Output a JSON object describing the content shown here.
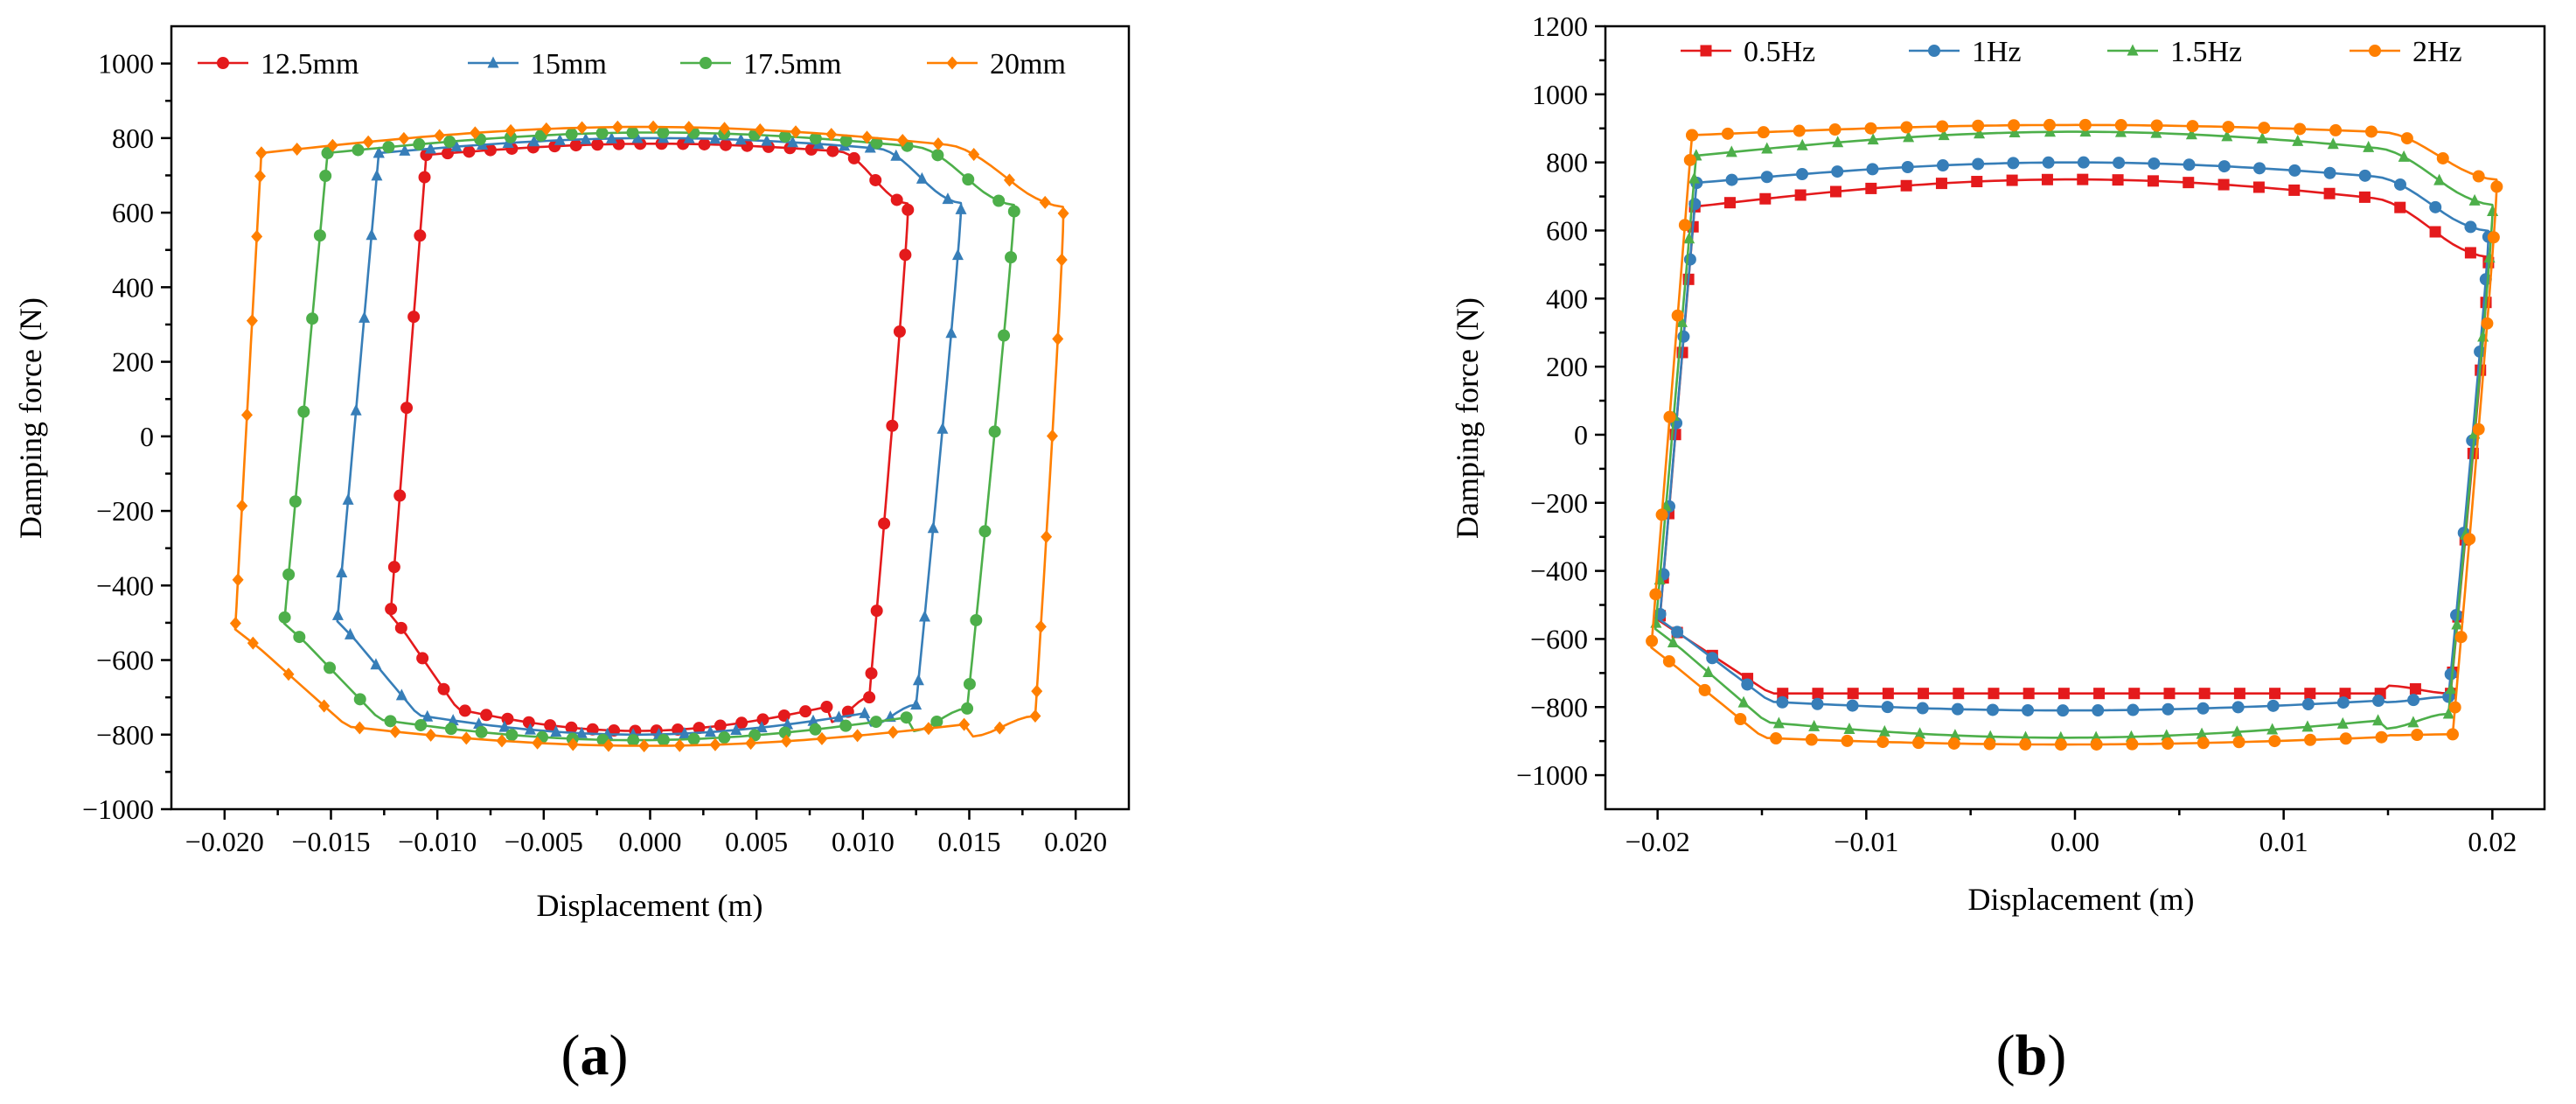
{
  "chart_data": [
    {
      "type": "line",
      "panel_label": {
        "open": "(",
        "letter": "a",
        "close": ")"
      },
      "title": "",
      "xlabel": "Displacement (m)",
      "ylabel": "Damping force (N)",
      "xlim": [
        -0.0225,
        0.0225
      ],
      "ylim": [
        -1000,
        1100
      ],
      "xticks": [
        -0.02,
        -0.015,
        -0.01,
        -0.005,
        0.0,
        0.005,
        0.01,
        0.015,
        0.02
      ],
      "xtick_labels": [
        "−0.020",
        "−0.015",
        "−0.010",
        "−0.005",
        "0.000",
        "0.005",
        "0.010",
        "0.015",
        "0.020"
      ],
      "yticks": [
        -1000,
        -800,
        -600,
        -400,
        -200,
        0,
        200,
        400,
        600,
        800,
        1000
      ],
      "ytick_labels": [
        "−1000",
        "−800",
        "−600",
        "−400",
        "−200",
        "0",
        "200",
        "400",
        "600",
        "800",
        "1000"
      ],
      "legend_position": "top",
      "series": [
        {
          "name": "12.5mm",
          "color": "#e41a1c",
          "marker": "circle",
          "amplitude": 0.0125,
          "upper_at_mid": 785,
          "lower_at_mid": -790,
          "plateau_start": 755,
          "trough_start": -580,
          "crossing_offset": 0.0022
        },
        {
          "name": "15mm",
          "color": "#377eb8",
          "marker": "triangle",
          "amplitude": 0.015,
          "upper_at_mid": 800,
          "lower_at_mid": -800,
          "plateau_start": 760,
          "trough_start": -600,
          "crossing_offset": 0.0025
        },
        {
          "name": "17.5mm",
          "color": "#4daf4a",
          "marker": "circle",
          "amplitude": 0.0175,
          "upper_at_mid": 815,
          "lower_at_mid": -815,
          "plateau_start": 760,
          "trough_start": -610,
          "crossing_offset": 0.0026
        },
        {
          "name": "20mm",
          "color": "#ff7f00",
          "marker": "diamond",
          "amplitude": 0.0198,
          "upper_at_mid": 830,
          "lower_at_mid": -830,
          "plateau_start": 760,
          "trough_start": -630,
          "crossing_offset": 0.0017
        }
      ]
    },
    {
      "type": "line",
      "panel_label": {
        "open": "(",
        "letter": "b",
        "close": ")"
      },
      "title": "",
      "xlabel": "Displacement (m)",
      "ylabel": "Damping force (N)",
      "xlim": [
        -0.0225,
        0.0225
      ],
      "ylim": [
        -1100,
        1200
      ],
      "xticks": [
        -0.02,
        -0.01,
        0.0,
        0.01,
        0.02
      ],
      "xtick_labels": [
        "−0.02",
        "−0.01",
        "0.00",
        "0.01",
        "0.02"
      ],
      "yticks": [
        -1000,
        -800,
        -600,
        -400,
        -200,
        0,
        200,
        400,
        600,
        800,
        1000,
        1200
      ],
      "ytick_labels": [
        "−1000",
        "−800",
        "−600",
        "−400",
        "−200",
        "0",
        "200",
        "400",
        "600",
        "800",
        "1000",
        "1200"
      ],
      "legend_position": "top",
      "series": [
        {
          "name": "0.5Hz",
          "color": "#e41a1c",
          "marker": "square",
          "amplitude": 0.0202,
          "upper_at_mid": 750,
          "lower_at_mid": -760,
          "plateau_start": 670,
          "trough_start": -640,
          "crossing_offset": 0.0022
        },
        {
          "name": "1Hz",
          "color": "#377eb8",
          "marker": "circle",
          "amplitude": 0.0202,
          "upper_at_mid": 800,
          "lower_at_mid": -810,
          "plateau_start": 740,
          "trough_start": -650,
          "crossing_offset": 0.0023
        },
        {
          "name": "1.5Hz",
          "color": "#4daf4a",
          "marker": "triangle",
          "amplitude": 0.0204,
          "upper_at_mid": 890,
          "lower_at_mid": -890,
          "plateau_start": 820,
          "trough_start": -700,
          "crossing_offset": 0.0025
        },
        {
          "name": "2Hz",
          "color": "#ff7f00",
          "marker": "circle",
          "amplitude": 0.0206,
          "upper_at_mid": 910,
          "lower_at_mid": -910,
          "plateau_start": 880,
          "trough_start": -760,
          "crossing_offset": 0.0025
        }
      ]
    }
  ]
}
